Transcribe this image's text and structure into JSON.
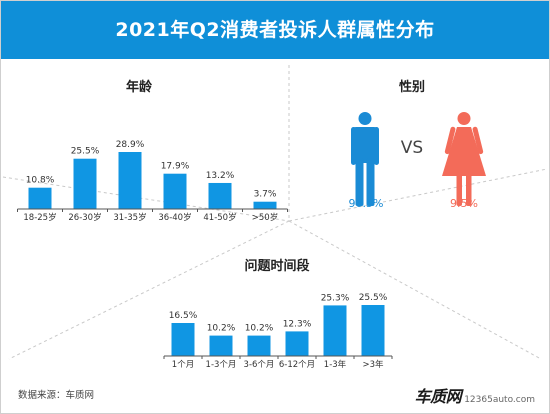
{
  "header": {
    "title": "2021年Q2消费者投诉人群属性分布"
  },
  "source": "数据来源：车质网",
  "logo": {
    "name": "车质网",
    "url": "12365auto.com"
  },
  "colors": {
    "header": "#0f8fd8",
    "bar": "#1096e3",
    "male": "#1a8bd5",
    "female": "#f36b59",
    "divider": "#c9c9c9"
  },
  "gender": {
    "title": "性别",
    "vs": "VS",
    "male": {
      "icon": "male-icon",
      "value": "90.5%"
    },
    "female": {
      "icon": "female-icon",
      "value": "9.5%"
    }
  },
  "chart_data": [
    {
      "type": "bar",
      "title": "年龄",
      "categories": [
        "18-25岁",
        "26-30岁",
        "31-35岁",
        "36-40岁",
        "41-50岁",
        ">50岁"
      ],
      "values": [
        10.8,
        25.5,
        28.9,
        17.9,
        13.2,
        3.7
      ],
      "labels": [
        "10.8%",
        "25.5%",
        "28.9%",
        "17.9%",
        "13.2%",
        "3.7%"
      ],
      "ylim": [
        0,
        28.9
      ],
      "grid": false,
      "legend": "none"
    },
    {
      "type": "bar",
      "title": "问题时间段",
      "categories": [
        "1个月",
        "1-3个月",
        "3-6个月",
        "6-12个月",
        "1-3年",
        ">3年"
      ],
      "values": [
        16.5,
        10.2,
        10.2,
        12.3,
        25.3,
        25.5
      ],
      "labels": [
        "16.5%",
        "10.2%",
        "10.2%",
        "12.3%",
        "25.3%",
        "25.5%"
      ],
      "ylim": [
        0,
        25.5
      ],
      "grid": false,
      "legend": "none"
    }
  ]
}
